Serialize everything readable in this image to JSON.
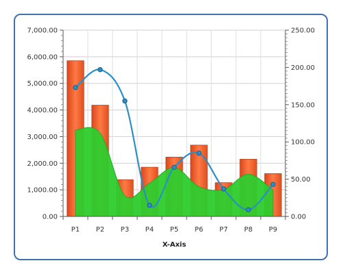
{
  "chart_data": {
    "type": "bar",
    "categories": [
      "P1",
      "P2",
      "P3",
      "P4",
      "P5",
      "P6",
      "P7",
      "P8",
      "P9"
    ],
    "xlabel": "X-Axis",
    "ylim_left": [
      0,
      7000
    ],
    "ylim_right": [
      0,
      250
    ],
    "y_ticks_left": [
      "0.00",
      "1,000.00",
      "2,000.00",
      "3,000.00",
      "4,000.00",
      "5,000.00",
      "6,000.00",
      "7,000.00"
    ],
    "y_ticks_right": [
      "0.00",
      "50.00",
      "100.00",
      "150.00",
      "200.00",
      "250.00"
    ],
    "grid": true,
    "series": [
      {
        "type": "bar",
        "axis": "left",
        "color": "#f25c2a",
        "values": [
          5850,
          4180,
          1380,
          1850,
          2230,
          2680,
          1270,
          2150,
          1610
        ]
      },
      {
        "type": "area",
        "axis": "left",
        "color": "#2ecc2e",
        "values": [
          3250,
          3130,
          780,
          1250,
          1840,
          1120,
          1010,
          1590,
          1000
        ]
      },
      {
        "type": "line",
        "axis": "right",
        "color": "#2b8fc6",
        "values": [
          173,
          197,
          155,
          15,
          66,
          85,
          37,
          9,
          43
        ]
      }
    ]
  }
}
